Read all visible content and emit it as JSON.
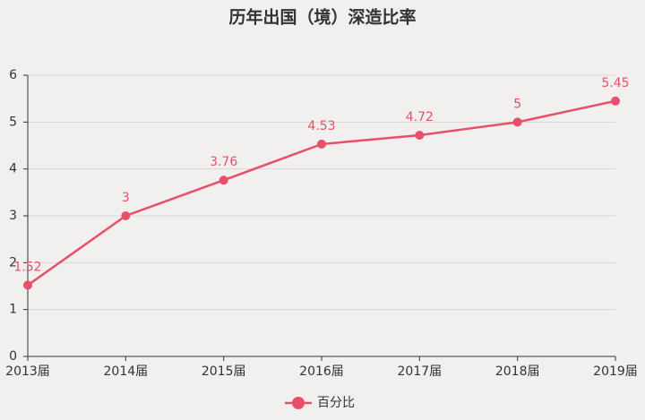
{
  "chart_data": {
    "type": "line",
    "title": "历年出国（境）深造比率",
    "categories": [
      "2013届",
      "2014届",
      "2015届",
      "2016届",
      "2017届",
      "2018届",
      "2019届"
    ],
    "series": [
      {
        "name": "百分比",
        "color": "#e8506a",
        "values": [
          1.52,
          3,
          3.76,
          4.53,
          4.72,
          5,
          5.45
        ]
      }
    ],
    "ylim": [
      0,
      6
    ],
    "yticks": [
      0,
      1,
      2,
      3,
      4,
      5,
      6
    ],
    "grid": true,
    "legend": "bottom"
  }
}
